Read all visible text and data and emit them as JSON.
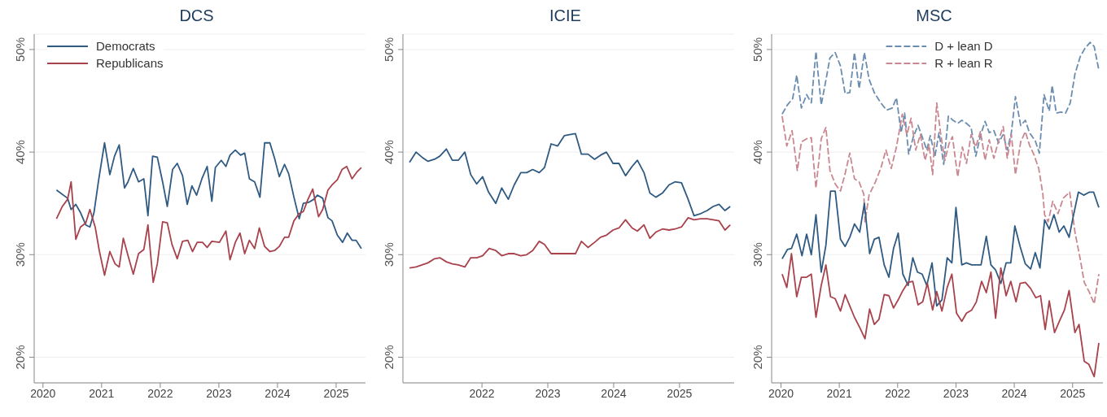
{
  "chart_data": [
    {
      "type": "line",
      "title": "DCS",
      "xlim": [
        2019.85,
        2025.5
      ],
      "xticks": [
        2020,
        2021,
        2022,
        2023,
        2024,
        2025
      ],
      "ylim": [
        17.5,
        51.5
      ],
      "yticks": [
        {
          "value": 20,
          "label": "20%"
        },
        {
          "value": 30,
          "label": "30%"
        },
        {
          "value": 40,
          "label": "40%"
        },
        {
          "value": 50,
          "label": "50%"
        }
      ],
      "grid": "y",
      "legend": "top left",
      "line_style": "solid",
      "marker": "none",
      "series": [
        {
          "name": "Democrats",
          "color": "#2f5a82",
          "x": [
            2020.23,
            2020.42,
            2020.48,
            2020.56,
            2020.64,
            2020.73,
            2020.8,
            2020.87,
            2020.95,
            2021.05,
            2021.14,
            2021.22,
            2021.3,
            2021.39,
            2021.45,
            2021.54,
            2021.63,
            2021.72,
            2021.79,
            2021.87,
            2021.95,
            2022.04,
            2022.12,
            2022.21,
            2022.29,
            2022.38,
            2022.46,
            2022.54,
            2022.62,
            2022.71,
            2022.8,
            2022.88,
            2022.94,
            2023.04,
            2023.12,
            2023.19,
            2023.28,
            2023.37,
            2023.44,
            2023.52,
            2023.61,
            2023.7,
            2023.78,
            2023.87,
            2023.95,
            2024.03,
            2024.12,
            2024.19,
            2024.28,
            2024.37,
            2024.44,
            2024.53,
            2024.62,
            2024.68,
            2024.77,
            2024.86,
            2024.93,
            2025.02,
            2025.11,
            2025.19,
            2025.27,
            2025.34,
            2025.43
          ],
          "values": [
            36.3,
            35.5,
            34.4,
            34.9,
            34.1,
            32.9,
            32.7,
            34.1,
            37.3,
            40.9,
            37.8,
            39.6,
            40.7,
            36.5,
            37.1,
            38.4,
            37.1,
            37.4,
            33.8,
            39.6,
            39.5,
            37.1,
            34.7,
            38.3,
            38.9,
            37.7,
            34.9,
            36.7,
            35.8,
            37.4,
            38.6,
            35.2,
            38.5,
            39.2,
            38.6,
            39.7,
            40.2,
            39.7,
            39.9,
            37.4,
            37.1,
            35.6,
            40.9,
            40.9,
            39.4,
            37.6,
            38.8,
            37.9,
            35.6,
            33.5,
            35.0,
            35.1,
            35.4,
            35.8,
            35.5,
            33.6,
            33.3,
            31.9,
            31.2,
            32.1,
            31.4,
            31.4,
            30.6
          ]
        },
        {
          "name": "Republicans",
          "color": "#a8424c",
          "x": [
            2020.23,
            2020.33,
            2020.42,
            2020.48,
            2020.56,
            2020.64,
            2020.73,
            2020.8,
            2020.89,
            2020.96,
            2021.05,
            2021.14,
            2021.23,
            2021.3,
            2021.37,
            2021.46,
            2021.54,
            2021.63,
            2021.72,
            2021.79,
            2021.88,
            2021.95,
            2022.04,
            2022.12,
            2022.2,
            2022.29,
            2022.38,
            2022.47,
            2022.55,
            2022.63,
            2022.72,
            2022.8,
            2022.88,
            2023.01,
            2023.12,
            2023.19,
            2023.28,
            2023.36,
            2023.44,
            2023.52,
            2023.61,
            2023.69,
            2023.78,
            2023.87,
            2023.95,
            2024.03,
            2024.12,
            2024.19,
            2024.28,
            2024.37,
            2024.44,
            2024.52,
            2024.6,
            2024.7,
            2024.77,
            2024.86,
            2024.93,
            2025.02,
            2025.1,
            2025.18,
            2025.27,
            2025.36,
            2025.43
          ],
          "values": [
            33.5,
            34.7,
            35.4,
            37.1,
            31.5,
            32.7,
            33.1,
            34.4,
            32.7,
            30.4,
            28.0,
            30.3,
            29.1,
            28.8,
            31.6,
            29.7,
            28.1,
            30.1,
            30.5,
            32.9,
            27.3,
            29.1,
            33.2,
            33.1,
            31.0,
            29.6,
            31.3,
            31.4,
            30.3,
            31.2,
            31.2,
            30.7,
            31.3,
            31.2,
            32.3,
            29.5,
            31.2,
            32.1,
            30.1,
            31.4,
            30.6,
            32.6,
            30.8,
            30.3,
            30.4,
            30.8,
            31.7,
            31.7,
            33.3,
            34.0,
            34.2,
            35.4,
            36.4,
            33.7,
            34.4,
            36.3,
            36.8,
            37.3,
            38.3,
            38.6,
            37.4,
            38.1,
            38.5
          ]
        }
      ]
    },
    {
      "type": "line",
      "title": "ICIE",
      "xlim": [
        2020.8,
        2025.83
      ],
      "xticks": [
        2022,
        2023,
        2024,
        2025
      ],
      "ylim": [
        17.5,
        51.5
      ],
      "yticks": [
        {
          "value": 20,
          "label": "20%"
        },
        {
          "value": 30,
          "label": "30%"
        },
        {
          "value": 40,
          "label": "40%"
        },
        {
          "value": 50,
          "label": "50%"
        }
      ],
      "grid": "y",
      "line_style": "solid",
      "marker": "none",
      "series": [
        {
          "color": "#2f5a82",
          "x": [
            2020.9,
            2021.0,
            2021.09,
            2021.18,
            2021.28,
            2021.36,
            2021.46,
            2021.55,
            2021.64,
            2021.74,
            2021.83,
            2021.92,
            2022.01,
            2022.1,
            2022.21,
            2022.3,
            2022.4,
            2022.49,
            2022.59,
            2022.68,
            2022.77,
            2022.87,
            2022.95,
            2023.05,
            2023.15,
            2023.25,
            2023.33,
            2023.42,
            2023.51,
            2023.61,
            2023.71,
            2023.8,
            2023.89,
            2023.99,
            2024.08,
            2024.18,
            2024.28,
            2024.36,
            2024.46,
            2024.55,
            2024.64,
            2024.74,
            2024.84,
            2024.93,
            2025.03,
            2025.13,
            2025.22,
            2025.32,
            2025.42,
            2025.51,
            2025.6,
            2025.69,
            2025.77
          ],
          "values": [
            39.0,
            40.0,
            39.5,
            39.1,
            39.3,
            39.6,
            40.3,
            39.2,
            39.2,
            40.0,
            37.8,
            36.9,
            37.6,
            36.1,
            35.0,
            36.5,
            35.4,
            36.8,
            38.0,
            38.0,
            38.3,
            38.0,
            38.5,
            40.8,
            40.6,
            41.6,
            41.7,
            41.8,
            39.8,
            39.8,
            39.3,
            39.7,
            40.0,
            38.9,
            38.9,
            37.7,
            38.6,
            39.2,
            38.0,
            36.0,
            35.6,
            36.0,
            36.8,
            37.1,
            37.0,
            35.4,
            33.8,
            34.0,
            34.3,
            34.7,
            34.9,
            34.3,
            34.7
          ]
        },
        {
          "color": "#a8424c",
          "x": [
            2020.9,
            2021.0,
            2021.09,
            2021.18,
            2021.28,
            2021.36,
            2021.46,
            2021.55,
            2021.64,
            2021.74,
            2021.83,
            2021.92,
            2022.01,
            2022.11,
            2022.21,
            2022.3,
            2022.4,
            2022.49,
            2022.59,
            2022.68,
            2022.77,
            2022.87,
            2022.95,
            2023.05,
            2023.15,
            2023.25,
            2023.33,
            2023.42,
            2023.51,
            2023.61,
            2023.71,
            2023.8,
            2023.89,
            2023.99,
            2024.08,
            2024.18,
            2024.28,
            2024.36,
            2024.46,
            2024.55,
            2024.64,
            2024.74,
            2024.84,
            2024.93,
            2025.03,
            2025.13,
            2025.22,
            2025.32,
            2025.42,
            2025.51,
            2025.6,
            2025.69,
            2025.77
          ],
          "values": [
            28.7,
            28.8,
            29.0,
            29.2,
            29.6,
            29.7,
            29.3,
            29.1,
            29.0,
            28.8,
            29.7,
            29.7,
            29.9,
            30.6,
            30.4,
            29.9,
            30.1,
            30.1,
            29.9,
            30.0,
            30.4,
            31.3,
            31.0,
            30.1,
            30.1,
            30.1,
            30.1,
            30.1,
            31.3,
            30.7,
            31.2,
            31.7,
            31.9,
            32.4,
            32.6,
            33.4,
            32.6,
            32.3,
            32.9,
            31.6,
            32.2,
            32.5,
            32.4,
            32.5,
            32.7,
            33.6,
            33.4,
            33.5,
            33.5,
            33.4,
            33.3,
            32.4,
            32.9
          ]
        }
      ]
    },
    {
      "type": "line",
      "title": "MSC",
      "xlim": [
        2019.84,
        2025.52
      ],
      "xticks": [
        2020,
        2021,
        2022,
        2023,
        2024,
        2025
      ],
      "ylim": [
        17.5,
        51.5
      ],
      "yticks": [
        {
          "value": 20,
          "label": "20%"
        },
        {
          "value": 30,
          "label": "30%"
        },
        {
          "value": 40,
          "label": "40%"
        },
        {
          "value": 50,
          "label": "50%"
        }
      ],
      "grid": "y",
      "legend": "top",
      "line_style": "solid",
      "marker": "none",
      "series": [
        {
          "name": "D + lean D",
          "color": "#6b8db0",
          "line_style": "dashed",
          "x": [
            2020.02,
            2020.11,
            2020.2,
            2020.27,
            2020.35,
            2020.44,
            2020.52,
            2020.6,
            2020.69,
            2020.77,
            2020.84,
            2020.93,
            2021.02,
            2021.1,
            2021.18,
            2021.26,
            2021.34,
            2021.43,
            2021.51,
            2021.6,
            2021.71,
            2021.81,
            2021.91,
            2021.98,
            2022.06,
            2022.12,
            2022.19,
            2022.27,
            2022.35,
            2022.42,
            2022.5,
            2022.56,
            2022.64,
            2022.71,
            2022.79,
            2022.87,
            2022.95,
            2023.03,
            2023.1,
            2023.18,
            2023.26,
            2023.34,
            2023.42,
            2023.5,
            2023.57,
            2023.65,
            2023.73,
            2023.81,
            2023.88,
            2023.95,
            2024.02,
            2024.11,
            2024.19,
            2024.26,
            2024.36,
            2024.43,
            2024.51,
            2024.6,
            2024.65,
            2024.72,
            2024.8,
            2024.88,
            2024.96,
            2025.04,
            2025.13,
            2025.21,
            2025.3,
            2025.37,
            2025.45
          ],
          "values": [
            43.7,
            44.6,
            45.2,
            47.5,
            44.3,
            45.6,
            44.8,
            49.8,
            44.6,
            47.0,
            49.2,
            49.7,
            48.4,
            45.7,
            45.8,
            49.7,
            46.2,
            49.7,
            47.1,
            45.8,
            44.8,
            44.1,
            44.3,
            45.3,
            41.9,
            43.8,
            39.8,
            41.5,
            42.6,
            41.5,
            40.2,
            41.6,
            39.6,
            41.9,
            38.8,
            43.5,
            43.1,
            42.8,
            43.1,
            42.8,
            42.4,
            39.6,
            41.6,
            43.0,
            41.9,
            42.1,
            40.9,
            41.7,
            40.2,
            41.9,
            45.4,
            42.6,
            43.1,
            41.9,
            41.1,
            39.9,
            45.6,
            44.0,
            46.5,
            43.8,
            43.9,
            43.8,
            44.8,
            47.6,
            49.3,
            50.1,
            50.7,
            50.3,
            48.0
          ]
        },
        {
          "name": "R + lean R",
          "color": "#c98890",
          "line_style": "dashed",
          "x": [
            2020.02,
            2020.1,
            2020.19,
            2020.28,
            2020.35,
            2020.44,
            2020.52,
            2020.6,
            2020.69,
            2020.77,
            2020.84,
            2020.93,
            2021.02,
            2021.1,
            2021.18,
            2021.26,
            2021.34,
            2021.42,
            2021.44,
            2021.51,
            2021.62,
            2021.71,
            2021.8,
            2021.89,
            2021.98,
            2022.08,
            2022.16,
            2022.23,
            2022.31,
            2022.39,
            2022.47,
            2022.54,
            2022.6,
            2022.67,
            2022.74,
            2022.81,
            2022.88,
            2022.94,
            2023.03,
            2023.11,
            2023.18,
            2023.26,
            2023.34,
            2023.42,
            2023.5,
            2023.57,
            2023.65,
            2023.73,
            2023.81,
            2023.88,
            2023.95,
            2024.02,
            2024.11,
            2024.19,
            2024.26,
            2024.34,
            2024.42,
            2024.49,
            2024.52,
            2024.58,
            2024.66,
            2024.75,
            2024.84,
            2024.95,
            2025.04,
            2025.13,
            2025.2,
            2025.29,
            2025.37,
            2025.45
          ],
          "values": [
            43.5,
            40.6,
            42.1,
            38.2,
            41.0,
            41.3,
            41.4,
            36.5,
            41.3,
            42.4,
            38.2,
            36.9,
            36.2,
            37.9,
            39.9,
            37.4,
            37.1,
            35.9,
            33.2,
            35.8,
            37.1,
            38.4,
            40.2,
            38.4,
            40.5,
            43.7,
            41.7,
            43.3,
            40.2,
            41.7,
            39.2,
            40.7,
            37.8,
            44.8,
            41.7,
            39.2,
            40.8,
            41.5,
            37.6,
            40.5,
            38.9,
            41.7,
            40.5,
            42.0,
            39.2,
            41.2,
            39.4,
            41.1,
            42.5,
            39.4,
            41.7,
            37.8,
            41.0,
            42.0,
            40.7,
            39.7,
            38.4,
            35.9,
            33.9,
            33.2,
            35.2,
            34.0,
            35.5,
            36.1,
            32.2,
            29.6,
            27.3,
            26.3,
            25.2,
            28.1
          ]
        },
        {
          "color": "#2f5a82",
          "x": [
            2020.02,
            2020.11,
            2020.18,
            2020.27,
            2020.36,
            2020.44,
            2020.52,
            2020.6,
            2020.69,
            2020.77,
            2020.85,
            2020.93,
            2021.02,
            2021.1,
            2021.18,
            2021.26,
            2021.35,
            2021.43,
            2021.52,
            2021.6,
            2021.68,
            2021.77,
            2021.85,
            2021.93,
            2022.01,
            2022.09,
            2022.18,
            2022.26,
            2022.34,
            2022.42,
            2022.5,
            2022.59,
            2022.67,
            2022.76,
            2022.85,
            2022.93,
            2023.0,
            2023.1,
            2023.18,
            2023.27,
            2023.35,
            2023.43,
            2023.52,
            2023.6,
            2023.68,
            2023.77,
            2023.86,
            2023.94,
            2024.01,
            2024.1,
            2024.19,
            2024.28,
            2024.36,
            2024.44,
            2024.52,
            2024.6,
            2024.68,
            2024.77,
            2024.85,
            2024.94,
            2025.01,
            2025.1,
            2025.19,
            2025.29,
            2025.36,
            2025.45
          ],
          "values": [
            29.6,
            30.5,
            30.6,
            32.0,
            29.9,
            32.0,
            30.0,
            33.9,
            28.3,
            30.9,
            36.2,
            36.2,
            31.5,
            30.8,
            31.7,
            33.0,
            32.2,
            35.0,
            30.1,
            31.5,
            31.7,
            29.0,
            27.8,
            30.6,
            32.1,
            28.1,
            27.0,
            29.7,
            28.3,
            28.1,
            27.0,
            29.2,
            25.0,
            25.6,
            29.7,
            29.2,
            34.6,
            29.0,
            29.2,
            29.0,
            29.0,
            29.0,
            31.8,
            29.0,
            28.5,
            27.2,
            29.2,
            29.2,
            32.8,
            30.8,
            29.1,
            28.6,
            30.2,
            28.7,
            33.4,
            32.5,
            33.9,
            32.2,
            32.8,
            31.7,
            33.7,
            36.1,
            35.8,
            36.1,
            36.1,
            34.6
          ]
        },
        {
          "color": "#a8424c",
          "x": [
            2020.02,
            2020.1,
            2020.18,
            2020.27,
            2020.35,
            2020.44,
            2020.52,
            2020.6,
            2020.69,
            2020.77,
            2020.85,
            2020.93,
            2021.02,
            2021.1,
            2021.18,
            2021.26,
            2021.35,
            2021.44,
            2021.52,
            2021.6,
            2021.68,
            2021.77,
            2021.85,
            2021.93,
            2022.01,
            2022.09,
            2022.18,
            2022.26,
            2022.35,
            2022.43,
            2022.51,
            2022.6,
            2022.67,
            2022.76,
            2022.85,
            2022.93,
            2023.01,
            2023.1,
            2023.18,
            2023.27,
            2023.35,
            2023.44,
            2023.52,
            2023.6,
            2023.68,
            2023.77,
            2023.86,
            2023.94,
            2024.03,
            2024.1,
            2024.19,
            2024.28,
            2024.37,
            2024.45,
            2024.53,
            2024.6,
            2024.69,
            2024.78,
            2024.86,
            2024.94,
            2025.04,
            2025.11,
            2025.2,
            2025.28,
            2025.37,
            2025.45
          ],
          "values": [
            28.1,
            26.8,
            30.1,
            25.9,
            27.8,
            27.8,
            28.1,
            23.9,
            27.0,
            29.0,
            25.9,
            25.7,
            24.5,
            26.1,
            25.0,
            23.9,
            22.9,
            21.8,
            24.7,
            23.2,
            23.7,
            26.1,
            26.0,
            24.8,
            25.6,
            26.5,
            27.3,
            27.4,
            25.1,
            25.4,
            27.2,
            24.6,
            26.4,
            24.5,
            26.8,
            28.1,
            24.3,
            23.5,
            24.3,
            24.6,
            25.4,
            27.4,
            26.3,
            28.3,
            23.8,
            28.7,
            26.0,
            27.4,
            25.4,
            27.2,
            27.3,
            26.7,
            25.8,
            26.0,
            22.7,
            25.5,
            22.4,
            23.6,
            24.6,
            26.5,
            22.4,
            23.2,
            19.6,
            19.3,
            18.1,
            21.4
          ]
        }
      ]
    }
  ]
}
